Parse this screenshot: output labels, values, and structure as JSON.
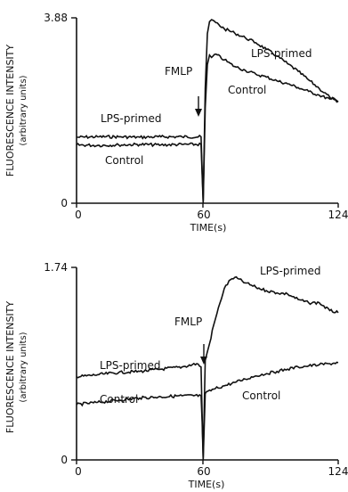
{
  "chart_data": [
    {
      "type": "line",
      "ylabel": "FLUORESCENCE INTENSITY",
      "ylabel_sub": "(arbitrary units)",
      "xlabel": "TIME(s)",
      "xlim": [
        0,
        124
      ],
      "ylim": [
        0,
        3.88
      ],
      "x_ticks": [
        "0",
        "60",
        "124"
      ],
      "y_ticks": [
        "0",
        "3.88"
      ],
      "grid": false,
      "legend": "inline",
      "annotation": {
        "text": "FMLP",
        "x": 60
      },
      "series": [
        {
          "name": "LPS-primed",
          "x": [
            0,
            10,
            20,
            30,
            40,
            50,
            59,
            59.5,
            60,
            61,
            62,
            63,
            64,
            66,
            70,
            75,
            80,
            85,
            90,
            95,
            100,
            105,
            110,
            115,
            120,
            124
          ],
          "y": [
            1.38,
            1.39,
            1.39,
            1.38,
            1.39,
            1.39,
            1.39,
            0.7,
            0.05,
            2.4,
            3.55,
            3.8,
            3.84,
            3.78,
            3.65,
            3.56,
            3.46,
            3.36,
            3.22,
            3.08,
            2.92,
            2.76,
            2.58,
            2.4,
            2.22,
            2.12
          ]
        },
        {
          "name": "Control",
          "x": [
            0,
            10,
            20,
            30,
            40,
            50,
            59,
            59.5,
            60,
            61,
            62,
            63,
            64,
            66,
            70,
            75,
            80,
            85,
            90,
            95,
            100,
            105,
            110,
            115,
            120,
            124
          ],
          "y": [
            1.22,
            1.21,
            1.22,
            1.23,
            1.22,
            1.23,
            1.23,
            0.6,
            0.0,
            2.0,
            2.9,
            3.1,
            3.05,
            3.12,
            3.0,
            2.86,
            2.78,
            2.7,
            2.64,
            2.56,
            2.5,
            2.42,
            2.34,
            2.26,
            2.18,
            2.14
          ]
        }
      ]
    },
    {
      "type": "line",
      "ylabel": "FLUORESCENCE INTENSITY",
      "ylabel_sub": "(arbitrary units)",
      "xlabel": "TIME(s)",
      "xlim": [
        0,
        124
      ],
      "ylim": [
        0,
        1.74
      ],
      "x_ticks": [
        "0",
        "60",
        "124"
      ],
      "y_ticks": [
        "0",
        "1.74"
      ],
      "grid": false,
      "legend": "inline",
      "annotation": {
        "text": "FMLP",
        "x": 60
      },
      "series": [
        {
          "name": "LPS-primed",
          "x": [
            0,
            10,
            20,
            30,
            40,
            50,
            57,
            59,
            59.5,
            60,
            61,
            63,
            65,
            68,
            70,
            73,
            75,
            80,
            85,
            90,
            95,
            100,
            105,
            110,
            115,
            120,
            124
          ],
          "y": [
            0.75,
            0.77,
            0.79,
            0.8,
            0.82,
            0.84,
            0.87,
            0.84,
            0.4,
            0.02,
            0.9,
            1.05,
            1.22,
            1.42,
            1.55,
            1.63,
            1.65,
            1.6,
            1.56,
            1.53,
            1.51,
            1.5,
            1.45,
            1.42,
            1.42,
            1.35,
            1.33
          ]
        },
        {
          "name": "Control",
          "x": [
            0,
            10,
            20,
            30,
            40,
            50,
            59,
            59.5,
            60,
            61,
            65,
            70,
            75,
            80,
            85,
            90,
            95,
            100,
            105,
            110,
            115,
            120,
            124
          ],
          "y": [
            0.5,
            0.52,
            0.54,
            0.56,
            0.57,
            0.58,
            0.58,
            0.35,
            0.0,
            0.6,
            0.64,
            0.67,
            0.7,
            0.73,
            0.76,
            0.78,
            0.8,
            0.82,
            0.84,
            0.85,
            0.86,
            0.87,
            0.88
          ]
        }
      ]
    }
  ]
}
